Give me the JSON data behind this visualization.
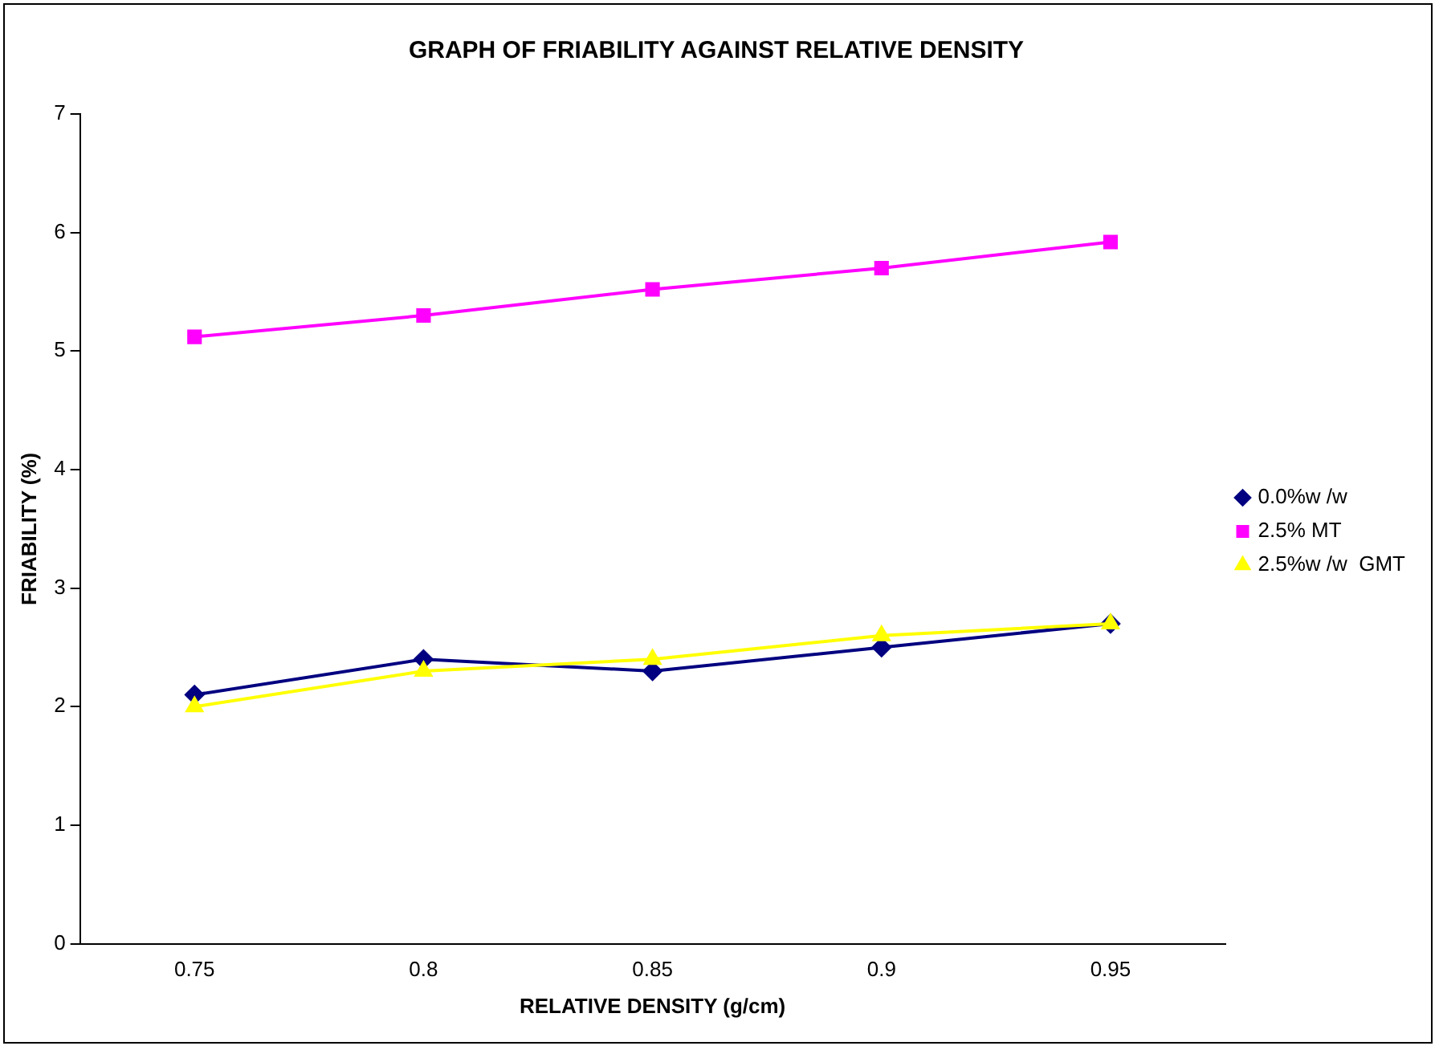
{
  "chart_data": {
    "type": "line",
    "title": "GRAPH OF FRIABILITY AGAINST RELATIVE DENSITY",
    "xlabel": "RELATIVE DENSITY (g/cm)",
    "ylabel": "FRIABILITY (%)",
    "categories": [
      "0.75",
      "0.8",
      "0.85",
      "0.9",
      "0.95"
    ],
    "series": [
      {
        "name": "0.0%w /w",
        "color": "#000080",
        "marker": "diamond",
        "values": [
          2.1,
          2.4,
          2.3,
          2.5,
          2.7
        ]
      },
      {
        "name": "2.5% MT",
        "color": "#ff00ff",
        "marker": "square",
        "values": [
          5.12,
          5.3,
          5.52,
          5.7,
          5.92
        ]
      },
      {
        "name": "2.5%w /w  GMT",
        "color": "#ffff00",
        "marker": "triangle",
        "values": [
          2.0,
          2.3,
          2.4,
          2.6,
          2.7
        ]
      }
    ],
    "ylim": [
      0,
      7
    ],
    "yticks": [
      0,
      1,
      2,
      3,
      4,
      5,
      6,
      7
    ],
    "grid": false,
    "legend": "right",
    "line_style": "solid"
  }
}
